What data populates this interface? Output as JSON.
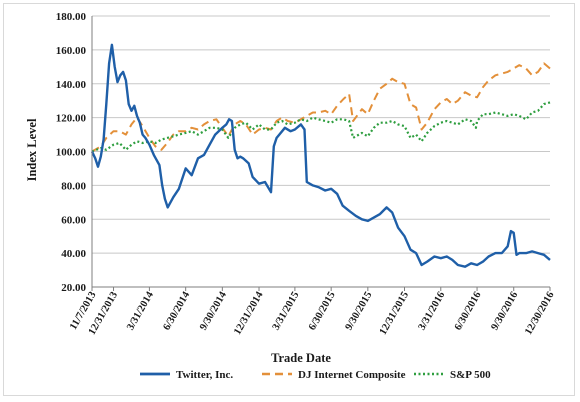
{
  "chart_data": {
    "type": "line",
    "xlabel": "Trade Date",
    "ylabel": "Index Level",
    "ylim": [
      20,
      180
    ],
    "y_ticks": [
      "20.00",
      "40.00",
      "60.00",
      "80.00",
      "100.00",
      "120.00",
      "140.00",
      "160.00",
      "180.00"
    ],
    "x_tick_labels": [
      "11/7/2013",
      "12/31/2013",
      "3/31/2014",
      "6/30/2014",
      "9/30/2014",
      "12/31/2014",
      "3/31/2015",
      "6/30/2015",
      "9/30/2015",
      "12/31/2015",
      "3/31/2016",
      "6/30/2016",
      "9/30/2016",
      "12/30/2016"
    ],
    "grid": "horizontal",
    "legend_position": "bottom",
    "series": [
      {
        "name": "Twitter, Inc.",
        "color": "#1f5fa8",
        "style": "solid",
        "points": [
          [
            "2013-11-07",
            100
          ],
          [
            "2013-11-15",
            96
          ],
          [
            "2013-11-22",
            91
          ],
          [
            "2013-11-29",
            97
          ],
          [
            "2013-12-06",
            107
          ],
          [
            "2013-12-13",
            128
          ],
          [
            "2013-12-20",
            152
          ],
          [
            "2013-12-27",
            163
          ],
          [
            "2014-01-03",
            150
          ],
          [
            "2014-01-10",
            141
          ],
          [
            "2014-01-17",
            145
          ],
          [
            "2014-01-24",
            147
          ],
          [
            "2014-01-31",
            142
          ],
          [
            "2014-02-07",
            128
          ],
          [
            "2014-02-14",
            124
          ],
          [
            "2014-02-21",
            127
          ],
          [
            "2014-02-28",
            121
          ],
          [
            "2014-03-07",
            117
          ],
          [
            "2014-03-14",
            110
          ],
          [
            "2014-03-21",
            108
          ],
          [
            "2014-03-31",
            104
          ],
          [
            "2014-04-11",
            98
          ],
          [
            "2014-04-25",
            92
          ],
          [
            "2014-05-02",
            80
          ],
          [
            "2014-05-09",
            72
          ],
          [
            "2014-05-16",
            67
          ],
          [
            "2014-05-23",
            70
          ],
          [
            "2014-05-30",
            73
          ],
          [
            "2014-06-13",
            78
          ],
          [
            "2014-06-30",
            90
          ],
          [
            "2014-07-15",
            86
          ],
          [
            "2014-07-31",
            96
          ],
          [
            "2014-08-15",
            98
          ],
          [
            "2014-08-29",
            104
          ],
          [
            "2014-09-12",
            110
          ],
          [
            "2014-09-30",
            114
          ],
          [
            "2014-10-10",
            116
          ],
          [
            "2014-10-17",
            119
          ],
          [
            "2014-10-24",
            118
          ],
          [
            "2014-10-31",
            101
          ],
          [
            "2014-11-07",
            96
          ],
          [
            "2014-11-14",
            97
          ],
          [
            "2014-11-21",
            96
          ],
          [
            "2014-12-05",
            93
          ],
          [
            "2014-12-15",
            85
          ],
          [
            "2014-12-31",
            81
          ],
          [
            "2015-01-15",
            82
          ],
          [
            "2015-01-30",
            76
          ],
          [
            "2015-02-06",
            103
          ],
          [
            "2015-02-13",
            108
          ],
          [
            "2015-02-20",
            110
          ],
          [
            "2015-03-06",
            114
          ],
          [
            "2015-03-20",
            112
          ],
          [
            "2015-03-31",
            113
          ],
          [
            "2015-04-15",
            116
          ],
          [
            "2015-04-24",
            113
          ],
          [
            "2015-04-30",
            82
          ],
          [
            "2015-05-15",
            80
          ],
          [
            "2015-05-29",
            79
          ],
          [
            "2015-06-15",
            77
          ],
          [
            "2015-06-30",
            78
          ],
          [
            "2015-07-15",
            75
          ],
          [
            "2015-07-29",
            68
          ],
          [
            "2015-08-14",
            65
          ],
          [
            "2015-08-31",
            62
          ],
          [
            "2015-09-15",
            60
          ],
          [
            "2015-09-30",
            59
          ],
          [
            "2015-10-15",
            61
          ],
          [
            "2015-10-30",
            63
          ],
          [
            "2015-11-16",
            67
          ],
          [
            "2015-11-30",
            64
          ],
          [
            "2015-12-15",
            55
          ],
          [
            "2015-12-31",
            50
          ],
          [
            "2016-01-15",
            42
          ],
          [
            "2016-01-29",
            40
          ],
          [
            "2016-02-12",
            33
          ],
          [
            "2016-02-26",
            35
          ],
          [
            "2016-03-15",
            38
          ],
          [
            "2016-03-31",
            37
          ],
          [
            "2016-04-15",
            38
          ],
          [
            "2016-04-29",
            36
          ],
          [
            "2016-05-13",
            33
          ],
          [
            "2016-05-31",
            32
          ],
          [
            "2016-06-15",
            34
          ],
          [
            "2016-06-30",
            33
          ],
          [
            "2016-07-15",
            35
          ],
          [
            "2016-07-29",
            38
          ],
          [
            "2016-08-15",
            40
          ],
          [
            "2016-08-31",
            40
          ],
          [
            "2016-09-15",
            44
          ],
          [
            "2016-09-23",
            53
          ],
          [
            "2016-09-30",
            52
          ],
          [
            "2016-10-07",
            39
          ],
          [
            "2016-10-14",
            40
          ],
          [
            "2016-10-31",
            40
          ],
          [
            "2016-11-15",
            41
          ],
          [
            "2016-11-30",
            40
          ],
          [
            "2016-12-15",
            39
          ],
          [
            "2016-12-30",
            36
          ]
        ]
      },
      {
        "name": "DJ Internet Composite",
        "color": "#e3903a",
        "style": "dash",
        "points": [
          [
            "2013-11-07",
            100
          ],
          [
            "2013-11-29",
            103
          ],
          [
            "2013-12-13",
            108
          ],
          [
            "2013-12-31",
            112
          ],
          [
            "2014-01-15",
            112
          ],
          [
            "2014-01-31",
            110
          ],
          [
            "2014-02-14",
            116
          ],
          [
            "2014-02-28",
            120
          ],
          [
            "2014-03-14",
            115
          ],
          [
            "2014-03-31",
            108
          ],
          [
            "2014-04-15",
            103
          ],
          [
            "2014-04-30",
            101
          ],
          [
            "2014-05-15",
            105
          ],
          [
            "2014-05-30",
            110
          ],
          [
            "2014-06-13",
            112
          ],
          [
            "2014-06-30",
            112
          ],
          [
            "2014-07-15",
            114
          ],
          [
            "2014-07-31",
            113
          ],
          [
            "2014-08-15",
            116
          ],
          [
            "2014-08-29",
            118
          ],
          [
            "2014-09-15",
            119
          ],
          [
            "2014-09-30",
            114
          ],
          [
            "2014-10-15",
            109
          ],
          [
            "2014-10-31",
            116
          ],
          [
            "2014-11-14",
            118
          ],
          [
            "2014-11-28",
            116
          ],
          [
            "2014-12-15",
            110
          ],
          [
            "2014-12-31",
            113
          ],
          [
            "2015-01-15",
            114
          ],
          [
            "2015-01-30",
            113
          ],
          [
            "2015-02-13",
            118
          ],
          [
            "2015-02-27",
            120
          ],
          [
            "2015-03-13",
            118
          ],
          [
            "2015-03-31",
            117
          ],
          [
            "2015-04-15",
            119
          ],
          [
            "2015-04-30",
            121
          ],
          [
            "2015-05-15",
            123
          ],
          [
            "2015-05-29",
            123
          ],
          [
            "2015-06-15",
            124
          ],
          [
            "2015-06-30",
            122
          ],
          [
            "2015-07-15",
            127
          ],
          [
            "2015-07-31",
            131
          ],
          [
            "2015-08-14",
            134
          ],
          [
            "2015-08-24",
            118
          ],
          [
            "2015-09-15",
            125
          ],
          [
            "2015-09-30",
            122
          ],
          [
            "2015-10-15",
            130
          ],
          [
            "2015-10-30",
            137
          ],
          [
            "2015-11-16",
            140
          ],
          [
            "2015-11-30",
            143
          ],
          [
            "2015-12-15",
            141
          ],
          [
            "2015-12-31",
            140
          ],
          [
            "2016-01-15",
            128
          ],
          [
            "2016-01-29",
            126
          ],
          [
            "2016-02-12",
            113
          ],
          [
            "2016-02-26",
            117
          ],
          [
            "2016-03-15",
            125
          ],
          [
            "2016-03-31",
            129
          ],
          [
            "2016-04-15",
            131
          ],
          [
            "2016-04-29",
            128
          ],
          [
            "2016-05-13",
            130
          ],
          [
            "2016-05-31",
            135
          ],
          [
            "2016-06-15",
            133
          ],
          [
            "2016-06-30",
            132
          ],
          [
            "2016-07-15",
            138
          ],
          [
            "2016-07-29",
            142
          ],
          [
            "2016-08-15",
            145
          ],
          [
            "2016-08-31",
            146
          ],
          [
            "2016-09-15",
            147
          ],
          [
            "2016-09-30",
            149
          ],
          [
            "2016-10-14",
            151
          ],
          [
            "2016-10-31",
            149
          ],
          [
            "2016-11-15",
            145
          ],
          [
            "2016-11-30",
            147
          ],
          [
            "2016-12-15",
            152
          ],
          [
            "2016-12-30",
            149
          ]
        ]
      },
      {
        "name": "S&P 500",
        "color": "#2e9e3f",
        "style": "dot",
        "points": [
          [
            "2013-11-07",
            100
          ],
          [
            "2013-11-29",
            102
          ],
          [
            "2013-12-13",
            101
          ],
          [
            "2013-12-31",
            104
          ],
          [
            "2014-01-15",
            105
          ],
          [
            "2014-01-31",
            101
          ],
          [
            "2014-02-14",
            104
          ],
          [
            "2014-02-28",
            106
          ],
          [
            "2014-03-14",
            105
          ],
          [
            "2014-03-31",
            106
          ],
          [
            "2014-04-15",
            105
          ],
          [
            "2014-04-30",
            107
          ],
          [
            "2014-05-15",
            108
          ],
          [
            "2014-05-30",
            109
          ],
          [
            "2014-06-13",
            110
          ],
          [
            "2014-06-30",
            111
          ],
          [
            "2014-07-15",
            112
          ],
          [
            "2014-07-31",
            110
          ],
          [
            "2014-08-15",
            112
          ],
          [
            "2014-08-29",
            114
          ],
          [
            "2014-09-15",
            114
          ],
          [
            "2014-09-30",
            113
          ],
          [
            "2014-10-15",
            108
          ],
          [
            "2014-10-31",
            114
          ],
          [
            "2014-11-14",
            116
          ],
          [
            "2014-11-28",
            117
          ],
          [
            "2014-12-15",
            113
          ],
          [
            "2014-12-31",
            116
          ],
          [
            "2015-01-15",
            113
          ],
          [
            "2015-01-30",
            113
          ],
          [
            "2015-02-13",
            117
          ],
          [
            "2015-02-27",
            118
          ],
          [
            "2015-03-13",
            116
          ],
          [
            "2015-03-31",
            117
          ],
          [
            "2015-04-15",
            119
          ],
          [
            "2015-04-30",
            118
          ],
          [
            "2015-05-15",
            120
          ],
          [
            "2015-05-29",
            119
          ],
          [
            "2015-06-15",
            118
          ],
          [
            "2015-06-30",
            117
          ],
          [
            "2015-07-15",
            119
          ],
          [
            "2015-07-31",
            119
          ],
          [
            "2015-08-14",
            118
          ],
          [
            "2015-08-24",
            108
          ],
          [
            "2015-09-15",
            111
          ],
          [
            "2015-09-30",
            109
          ],
          [
            "2015-10-15",
            114
          ],
          [
            "2015-10-30",
            117
          ],
          [
            "2015-11-16",
            117
          ],
          [
            "2015-11-30",
            118
          ],
          [
            "2015-12-15",
            116
          ],
          [
            "2015-12-31",
            115
          ],
          [
            "2016-01-15",
            108
          ],
          [
            "2016-01-29",
            110
          ],
          [
            "2016-02-12",
            106
          ],
          [
            "2016-02-26",
            111
          ],
          [
            "2016-03-15",
            115
          ],
          [
            "2016-03-31",
            117
          ],
          [
            "2016-04-15",
            118
          ],
          [
            "2016-04-29",
            117
          ],
          [
            "2016-05-13",
            116
          ],
          [
            "2016-05-31",
            119
          ],
          [
            "2016-06-15",
            118
          ],
          [
            "2016-06-27",
            114
          ],
          [
            "2016-06-30",
            118
          ],
          [
            "2016-07-15",
            122
          ],
          [
            "2016-07-29",
            122
          ],
          [
            "2016-08-15",
            123
          ],
          [
            "2016-08-31",
            122
          ],
          [
            "2016-09-15",
            121
          ],
          [
            "2016-09-30",
            122
          ],
          [
            "2016-10-14",
            121
          ],
          [
            "2016-10-31",
            119
          ],
          [
            "2016-11-15",
            123
          ],
          [
            "2016-11-30",
            124
          ],
          [
            "2016-12-15",
            128
          ],
          [
            "2016-12-30",
            129
          ]
        ]
      }
    ]
  }
}
